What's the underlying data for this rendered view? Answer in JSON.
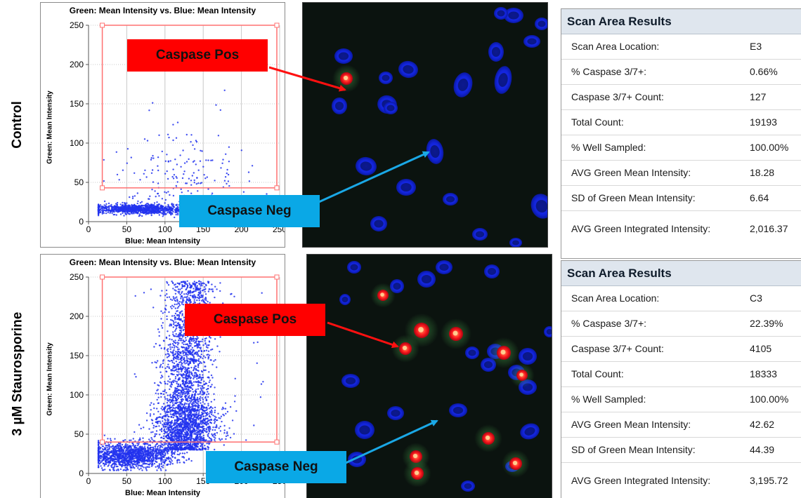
{
  "colors": {
    "dot": "#2233ee",
    "gate": "#ff7070",
    "pos_arrow": "#ff1010",
    "neg_arrow": "#1aa8e6"
  },
  "rows": [
    {
      "label": "Control",
      "plot": {
        "title": "Green: Mean Intensity vs. Blue: Mean Intensity",
        "xlabel": "Blue: Mean Intensity",
        "ylabel": "Green: Mean Intensity",
        "x_ticks": [
          "0",
          "50",
          "100",
          "150",
          "200",
          "250"
        ],
        "y_ticks": [
          "0",
          "50",
          "100",
          "150",
          "200",
          "250"
        ]
      },
      "callout_pos": "Caspase Pos",
      "callout_neg": "Caspase Neg",
      "results": {
        "header": "Scan Area Results",
        "items": [
          {
            "label": "Scan Area Location:",
            "value": "E3"
          },
          {
            "label": "% Caspase 3/7+:",
            "value": "0.66%"
          },
          {
            "label": "Caspase 3/7+ Count:",
            "value": "127"
          },
          {
            "label": "Total Count:",
            "value": "19193"
          },
          {
            "label": "% Well Sampled:",
            "value": "100.00%"
          },
          {
            "label": "AVG Green Mean Intensity:",
            "value": "18.28"
          },
          {
            "label": "SD of Green Mean Intensity:",
            "value": "6.64"
          },
          {
            "label": "AVG Green Integrated Intensity:",
            "value": "2,016.37"
          }
        ]
      }
    },
    {
      "label": "3 µM Staurosporine",
      "plot": {
        "title": "Green: Mean Intensity vs. Blue: Mean Intensity",
        "xlabel": "Blue: Mean Intensity",
        "ylabel": "Green: Mean Intensity",
        "x_ticks": [
          "0",
          "50",
          "100",
          "150",
          "200",
          "250"
        ],
        "y_ticks": [
          "0",
          "50",
          "100",
          "150",
          "200",
          "250"
        ]
      },
      "callout_pos": "Caspase Pos",
      "callout_neg": "Caspase Neg",
      "results": {
        "header": "Scan Area Results",
        "items": [
          {
            "label": "Scan Area Location:",
            "value": "C3"
          },
          {
            "label": "% Caspase 3/7+:",
            "value": "22.39%"
          },
          {
            "label": "Caspase 3/7+ Count:",
            "value": "4105"
          },
          {
            "label": "Total Count:",
            "value": "18333"
          },
          {
            "label": "% Well Sampled:",
            "value": "100.00%"
          },
          {
            "label": "AVG Green Mean Intensity:",
            "value": "42.62"
          },
          {
            "label": "SD of Green Mean Intensity:",
            "value": "44.39"
          },
          {
            "label": "AVG Green Integrated Intensity:",
            "value": "3,195.72"
          }
        ]
      }
    }
  ]
}
